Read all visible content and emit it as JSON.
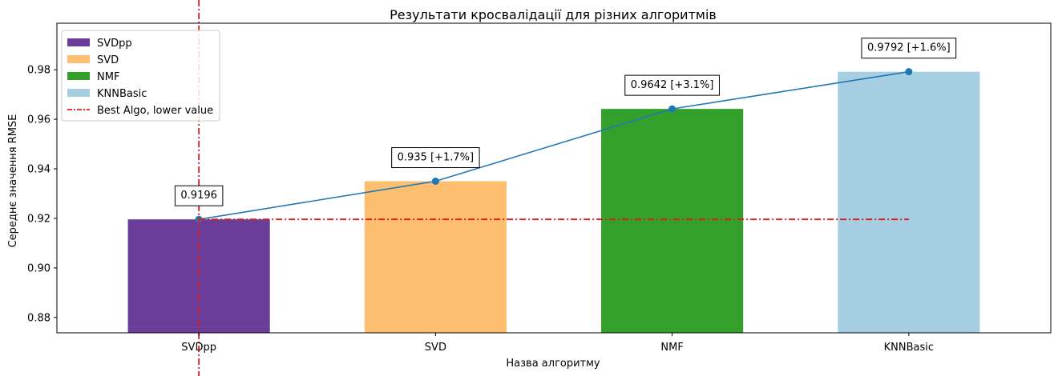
{
  "chart_data": {
    "type": "bar",
    "title": "Результати кросвалідації для різних алгоритмів",
    "xlabel": "Назва алгоритму",
    "ylabel": "Середнє значення RMSE",
    "categories": [
      "SVDpp",
      "SVD",
      "NMF",
      "KNNBasic"
    ],
    "values": [
      0.9196,
      0.935,
      0.9642,
      0.9792
    ],
    "bar_colors": [
      "#6a3d9a",
      "#fdbf6f",
      "#33a02c",
      "#a6cee3"
    ],
    "annotations": [
      "0.9196",
      "0.935 [+1.7%]",
      "0.9642 [+3.1%]",
      "0.9792 [+1.6%]"
    ],
    "line": {
      "color": "#1f77b4",
      "values": [
        0.9196,
        0.935,
        0.9642,
        0.9792
      ]
    },
    "best_line": {
      "label": "Best Algo, lower value",
      "value": 0.9196,
      "category": "SVDpp",
      "color": "#e31a1c",
      "style": "dash-dot"
    },
    "ylim": [
      0.8738,
      0.9988
    ],
    "yticks": [
      0.88,
      0.9,
      0.92,
      0.94,
      0.96,
      0.98
    ],
    "ytick_labels": [
      "0.88",
      "0.90",
      "0.92",
      "0.94",
      "0.96",
      "0.98"
    ],
    "grid": false,
    "legend": {
      "placement": "top-left",
      "entries": [
        {
          "label": "SVDpp",
          "kind": "patch",
          "color": "#6a3d9a"
        },
        {
          "label": "SVD",
          "kind": "patch",
          "color": "#fdbf6f"
        },
        {
          "label": "NMF",
          "kind": "patch",
          "color": "#33a02c"
        },
        {
          "label": "KNNBasic",
          "kind": "patch",
          "color": "#a6cee3"
        },
        {
          "label": "Best Algo, lower value",
          "kind": "line",
          "color": "#e31a1c"
        }
      ]
    }
  }
}
